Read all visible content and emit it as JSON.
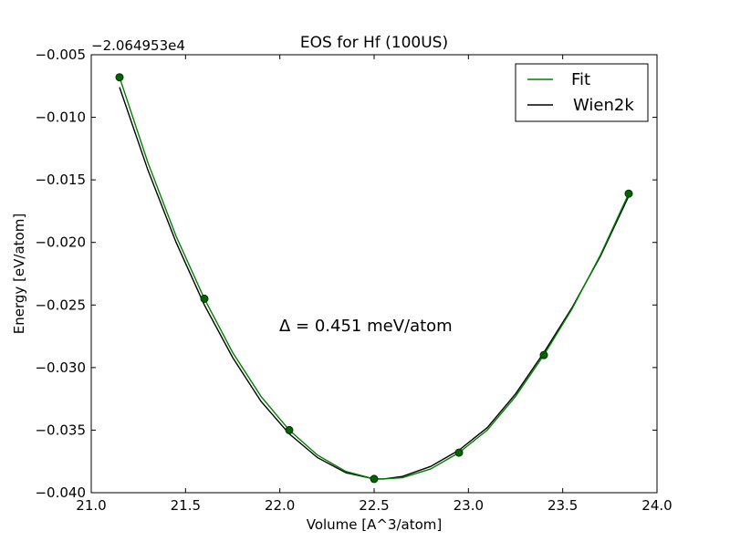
{
  "chart_data": {
    "type": "line",
    "title": "EOS for Hf (100US)",
    "xlabel": "Volume [A^3/atom]",
    "ylabel": "Energy [eV/atom]",
    "y_offset_label": "−2.064953e4",
    "xlim": [
      21.0,
      24.0
    ],
    "ylim": [
      -0.04,
      -0.005
    ],
    "x_ticks": [
      21.0,
      21.5,
      22.0,
      22.5,
      23.0,
      23.5,
      24.0
    ],
    "x_tick_labels": [
      "21.0",
      "21.5",
      "22.0",
      "22.5",
      "23.0",
      "23.5",
      "24.0"
    ],
    "y_ticks": [
      -0.005,
      -0.01,
      -0.015,
      -0.02,
      -0.025,
      -0.03,
      -0.035,
      -0.04
    ],
    "y_tick_labels": [
      "−0.005",
      "−0.010",
      "−0.015",
      "−0.020",
      "−0.025",
      "−0.030",
      "−0.035",
      "−0.040"
    ],
    "annotation": "Δ = 0.451 meV/atom",
    "legend_position": "top-right",
    "grid": false,
    "points": {
      "x": [
        21.15,
        21.6,
        22.05,
        22.5,
        22.95,
        23.4,
        23.85
      ],
      "y": [
        -0.0068,
        -0.0245,
        -0.035,
        -0.0389,
        -0.0368,
        -0.029,
        -0.0161
      ],
      "color": "#006400"
    },
    "series": [
      {
        "name": "Fit",
        "color": "#008000",
        "x": [
          21.15,
          21.3,
          21.45,
          21.6,
          21.75,
          21.9,
          22.05,
          22.2,
          22.35,
          22.5,
          22.55,
          22.65,
          22.8,
          22.95,
          23.1,
          23.25,
          23.4,
          23.55,
          23.7,
          23.85
        ],
        "y": [
          -0.0068,
          -0.0136,
          -0.0195,
          -0.0245,
          -0.0288,
          -0.0323,
          -0.035,
          -0.037,
          -0.0383,
          -0.0389,
          -0.0389,
          -0.0388,
          -0.0381,
          -0.0368,
          -0.035,
          -0.0323,
          -0.029,
          -0.0253,
          -0.021,
          -0.0161
        ]
      },
      {
        "name": "Wien2k",
        "color": "#000000",
        "x": [
          21.15,
          21.3,
          21.45,
          21.6,
          21.75,
          21.9,
          22.05,
          22.2,
          22.35,
          22.5,
          22.55,
          22.65,
          22.8,
          22.95,
          23.1,
          23.25,
          23.4,
          23.55,
          23.7,
          23.85
        ],
        "y": [
          -0.0076,
          -0.0142,
          -0.02,
          -0.025,
          -0.0292,
          -0.0327,
          -0.0353,
          -0.0372,
          -0.0384,
          -0.0389,
          -0.0389,
          -0.0387,
          -0.0379,
          -0.0366,
          -0.0348,
          -0.0321,
          -0.0288,
          -0.0252,
          -0.0211,
          -0.0163
        ]
      }
    ]
  }
}
